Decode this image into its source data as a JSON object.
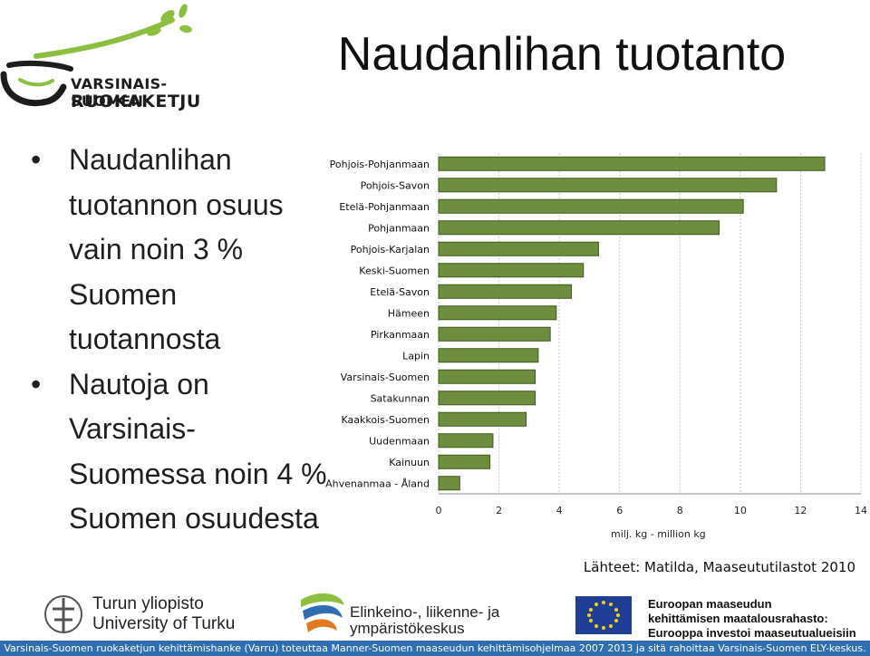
{
  "logo": {
    "line1": "VARSINAIS-SUOMEN",
    "line2": "RUOKAKETJU",
    "colors": {
      "green": "#8cbf3f",
      "dark": "#1d1d1b"
    }
  },
  "title": "Naudanlihan tuotanto",
  "bullets": [
    {
      "symbol": "•",
      "text": "Naudanlihan tuotannon osuus vain noin 3 % Suomen tuotannosta"
    },
    {
      "symbol": "•",
      "text": "Nautoja on Varsinais-Suomessa noin 4 % Suomen osuudesta"
    }
  ],
  "chart_data": {
    "type": "bar",
    "orientation": "horizontal",
    "categories": [
      "Pohjois-Pohjanmaa",
      "Pohjois-Savo",
      "Etelä-Pohjanmaa",
      "Pohjanmaa",
      "Pohjois-Karjala",
      "Keski-Suomi",
      "Etelä-Savo",
      "Häme",
      "Pirkanmaa",
      "Lapin",
      "Varsinais-Suomi",
      "Satakunta",
      "Kaakkois-Suomi",
      "Uusimaa",
      "Kainuu",
      "Ahvenanmaa - Åland"
    ],
    "category_labels": [
      "Pohjois-Pohjanmaan",
      "Pohjois-Savon",
      "Etelä-Pohjanmaan",
      "Pohjanmaan",
      "Pohjois-Karjalan",
      "Keski-Suomen",
      "Etelä-Savon",
      "Hämeen",
      "Pirkanmaan",
      "Lapin",
      "Varsinais-Suomen",
      "Satakunnan",
      "Kaakkois-Suomen",
      "Uudenmaan",
      "Kainuun",
      "Ahvenanmaa - Åland"
    ],
    "values": [
      12.8,
      11.2,
      10.1,
      9.3,
      5.3,
      4.8,
      4.4,
      3.9,
      3.7,
      3.3,
      3.2,
      3.2,
      2.9,
      1.8,
      1.7,
      0.7
    ],
    "xlabel": "milj. kg - million kg",
    "xlim": [
      0,
      14
    ],
    "xticks": [
      "0",
      "2",
      "4",
      "6",
      "8",
      "10",
      "12",
      "14"
    ],
    "grid": true,
    "bar_color": "#6f8d3e",
    "bar_edge": "#3f5a1e",
    "background": "#ffffff",
    "panel_background": "#ffffff"
  },
  "source": "Lähteet: Matilda, Maaseututilastot 2010",
  "footer": {
    "utu_line1": "Turun yliopisto",
    "utu_line2": "University of Turku",
    "ely_line1": "Elinkeino-, liikenne- ja",
    "ely_line2": "ympäristökeskus",
    "eu_line1": "Euroopan maaseudun",
    "eu_line2": "kehittämisen maatalousrahasto:",
    "eu_line3": "Eurooppa investoi maaseutualueisiin",
    "bar_text": "Varsinais-Suomen ruokaketjun kehittämishanke (Varru) toteuttaa Manner-Suomen maaseudun kehittämisohjelmaa 2007 2013 ja sitä rahoittaa Varsinais-Suomen ELY-keskus."
  }
}
